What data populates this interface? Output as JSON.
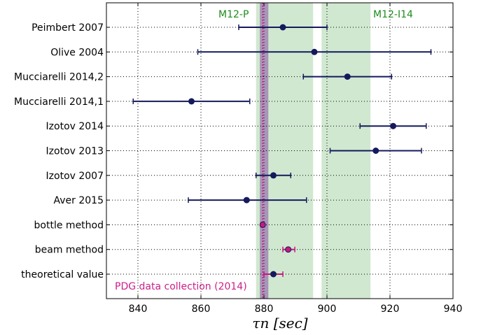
{
  "chart_data": {
    "type": "scatter",
    "orientation": "horizontal-errorbar",
    "xlim": [
      830,
      940
    ],
    "xticks": [
      840,
      860,
      880,
      900,
      920,
      940
    ],
    "xlabel": "τn   [sec]",
    "grid": true,
    "bands": [
      {
        "label": "M12-P",
        "from": 877.5,
        "to": 895.6,
        "color": "#a9d5a9"
      },
      {
        "label": "M12-I14",
        "from": 898.3,
        "to": 913.8,
        "color": "#a9d5a9"
      },
      {
        "label": "",
        "from": 878.7,
        "to": 881.4,
        "color": "#a58bb5"
      }
    ],
    "reference_line": {
      "x": 879.6,
      "style": "dotted",
      "color": "#cc1f8a"
    },
    "annotation": "PDG data collection (2014)",
    "categories": [
      "Peimbert 2007",
      "Olive 2004",
      "Mucciarelli 2014,2",
      "Mucciarelli 2014,1",
      "Izotov 2014",
      "Izotov 2013",
      "Izotov 2007",
      "Aver 2015",
      "bottle method",
      "beam method",
      "theoretical value"
    ],
    "values": [
      886,
      896,
      906.5,
      857,
      921,
      915.5,
      883,
      874.5,
      879.6,
      887.7,
      883
    ],
    "err_low": [
      872,
      859,
      892.5,
      838.5,
      910.5,
      901,
      877.5,
      856,
      879,
      886,
      880
    ],
    "err_high": [
      900,
      933,
      920.5,
      875.5,
      931.5,
      930,
      888.5,
      893.5,
      880.2,
      889.8,
      886
    ],
    "point_colors": [
      "#141a5c",
      "#141a5c",
      "#141a5c",
      "#141a5c",
      "#141a5c",
      "#141a5c",
      "#141a5c",
      "#141a5c",
      "#c21a7e",
      "#c21a7e",
      "#141a5c"
    ],
    "bar_colors": [
      "#141a5c",
      "#141a5c",
      "#141a5c",
      "#141a5c",
      "#141a5c",
      "#141a5c",
      "#141a5c",
      "#141a5c",
      "#c21a7e",
      "#c21a7e",
      "#c21a7e"
    ]
  }
}
